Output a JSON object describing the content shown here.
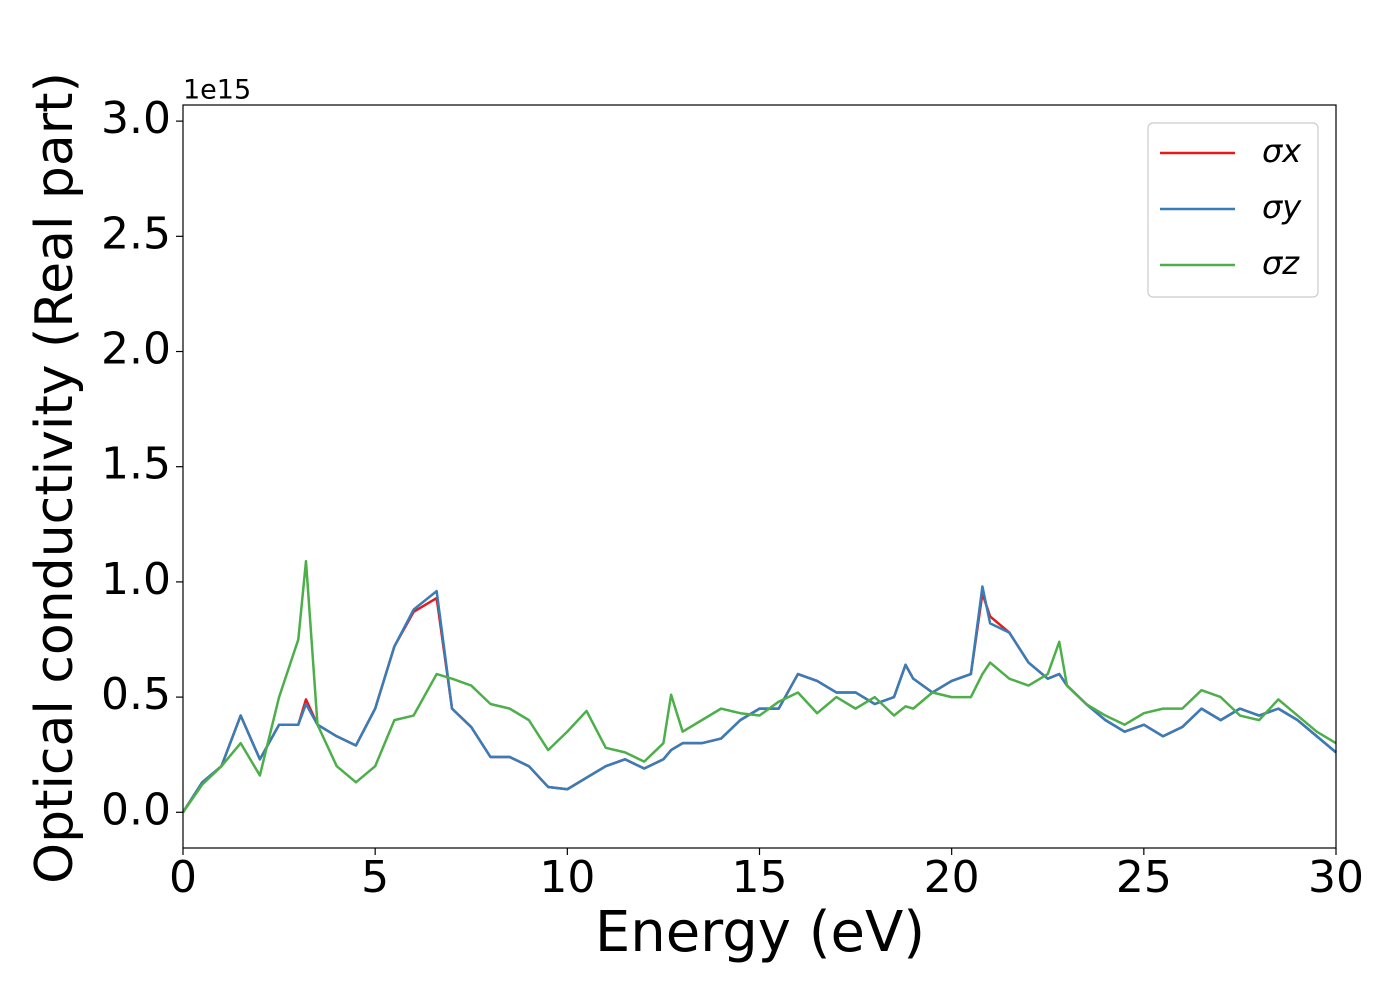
{
  "chart_data": {
    "type": "line",
    "ylabel": "Optical conductivity (Real part)",
    "xlabel": "Energy (eV)",
    "y_offset_text": "1e15",
    "x": [
      0,
      0.5,
      1,
      1.5,
      2,
      2.5,
      3,
      3.2,
      3.5,
      4,
      4.5,
      5,
      5.5,
      6,
      6.6,
      7,
      7.5,
      8,
      8.5,
      9,
      9.5,
      10,
      10.5,
      11,
      11.5,
      12,
      12.5,
      12.7,
      13,
      13.5,
      14,
      14.5,
      15,
      15.5,
      16,
      16.5,
      17,
      17.5,
      18,
      18.5,
      18.8,
      19,
      19.5,
      20,
      20.5,
      20.8,
      21,
      21.5,
      22,
      22.5,
      22.8,
      23,
      23.5,
      24,
      24.5,
      25,
      25.5,
      26,
      26.5,
      27,
      27.5,
      28,
      28.5,
      29,
      29.5,
      30
    ],
    "series": [
      {
        "name": "σx",
        "color": "#e41a1c",
        "values": [
          0.0,
          0.13,
          0.2,
          0.42,
          0.23,
          0.38,
          0.38,
          0.49,
          0.38,
          0.33,
          0.29,
          0.45,
          0.72,
          0.87,
          0.93,
          0.45,
          0.37,
          0.24,
          0.24,
          0.2,
          0.11,
          0.1,
          0.15,
          0.2,
          0.23,
          0.19,
          0.23,
          0.27,
          0.3,
          0.3,
          0.32,
          0.4,
          0.45,
          0.45,
          0.6,
          0.57,
          0.52,
          0.52,
          0.47,
          0.5,
          0.64,
          0.58,
          0.52,
          0.57,
          0.6,
          0.95,
          0.85,
          0.78,
          0.65,
          0.58,
          0.6,
          0.55,
          0.47,
          0.4,
          0.35,
          0.38,
          0.33,
          0.37,
          0.45,
          0.4,
          0.45,
          0.42,
          0.45,
          0.4,
          0.33,
          0.26
        ]
      },
      {
        "name": "σy",
        "color": "#377eb8",
        "values": [
          0.0,
          0.13,
          0.2,
          0.42,
          0.23,
          0.38,
          0.38,
          0.47,
          0.38,
          0.33,
          0.29,
          0.45,
          0.72,
          0.88,
          0.96,
          0.45,
          0.37,
          0.24,
          0.24,
          0.2,
          0.11,
          0.1,
          0.15,
          0.2,
          0.23,
          0.19,
          0.23,
          0.27,
          0.3,
          0.3,
          0.32,
          0.4,
          0.45,
          0.45,
          0.6,
          0.57,
          0.52,
          0.52,
          0.47,
          0.5,
          0.64,
          0.58,
          0.52,
          0.57,
          0.6,
          0.98,
          0.82,
          0.78,
          0.65,
          0.58,
          0.6,
          0.55,
          0.47,
          0.4,
          0.35,
          0.38,
          0.33,
          0.37,
          0.45,
          0.4,
          0.45,
          0.42,
          0.45,
          0.4,
          0.33,
          0.26
        ]
      },
      {
        "name": "σz",
        "color": "#4daf4a",
        "values": [
          0.0,
          0.12,
          0.2,
          0.3,
          0.16,
          0.5,
          0.75,
          1.09,
          0.38,
          0.2,
          0.13,
          0.2,
          0.4,
          0.42,
          0.6,
          0.58,
          0.55,
          0.47,
          0.45,
          0.4,
          0.27,
          0.35,
          0.44,
          0.28,
          0.26,
          0.22,
          0.3,
          0.51,
          0.35,
          0.4,
          0.45,
          0.43,
          0.42,
          0.48,
          0.52,
          0.43,
          0.5,
          0.45,
          0.5,
          0.42,
          0.46,
          0.45,
          0.52,
          0.5,
          0.5,
          0.6,
          0.65,
          0.58,
          0.55,
          0.6,
          0.74,
          0.55,
          0.47,
          0.42,
          0.38,
          0.43,
          0.45,
          0.45,
          0.53,
          0.5,
          0.42,
          0.4,
          0.49,
          0.42,
          0.35,
          0.3
        ]
      }
    ],
    "xlim": [
      0,
      30
    ],
    "xticks": [
      0,
      5,
      10,
      15,
      20,
      25,
      30
    ],
    "ylim": [
      -0.155,
      3.07
    ],
    "yticks": [
      {
        "value": 0,
        "label": "0.0"
      },
      0.5,
      {
        "value": 1,
        "label": "1.0"
      },
      1.5,
      {
        "value": 2,
        "label": "2.0"
      },
      2.5,
      {
        "value": 3,
        "label": "3.0"
      }
    ],
    "grid": false,
    "legend": "upper right"
  }
}
